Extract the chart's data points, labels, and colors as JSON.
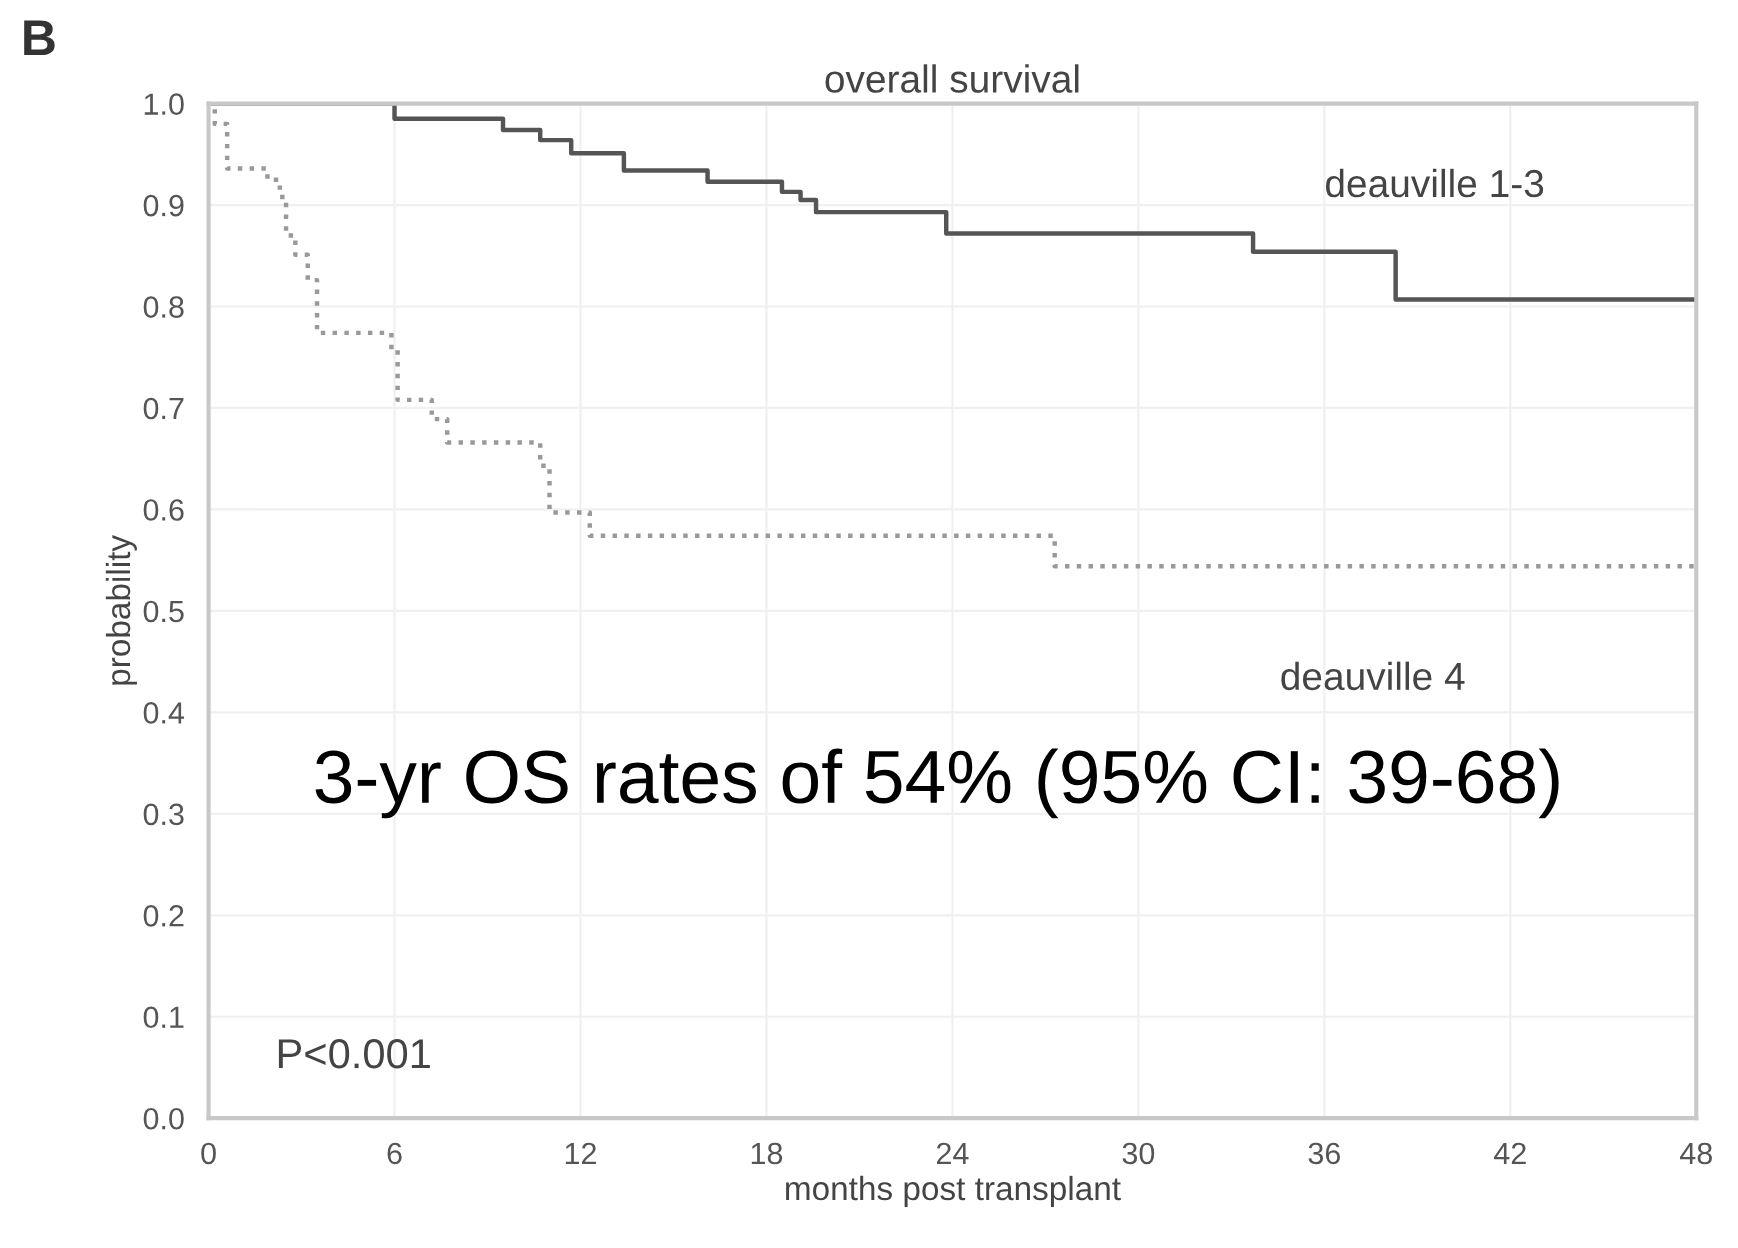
{
  "chart_data": {
    "type": "step",
    "title": "overall survival",
    "xlabel": "months post transplant",
    "ylabel": "probability",
    "xlim": [
      0,
      48
    ],
    "xticks": [
      0,
      6,
      12,
      18,
      24,
      30,
      36,
      42,
      48
    ],
    "ylim": [
      0,
      1.0
    ],
    "yticks": [
      {
        "value": 0,
        "label": "0.0"
      },
      0.1,
      0.2,
      0.3,
      0.4,
      0.5,
      0.6,
      0.7,
      0.8,
      0.9,
      {
        "value": 1,
        "label": "1.0"
      }
    ],
    "grid": true,
    "marker": "none",
    "series": [
      {
        "name": "deauville 1-3",
        "color": "#555555",
        "line_style": "solid",
        "x": [
          0,
          6,
          9.5,
          10.7,
          11.7,
          13.4,
          16.1,
          18.5,
          19.1,
          19.6,
          23.8,
          33.7,
          38.3,
          48
        ],
        "values": [
          1.0,
          0.985,
          0.974,
          0.964,
          0.951,
          0.934,
          0.923,
          0.913,
          0.905,
          0.893,
          0.872,
          0.854,
          0.807,
          0.807
        ]
      },
      {
        "name": "deauville 4",
        "color": "#999999",
        "line_style": "dotted",
        "x": [
          0,
          0.2,
          0.6,
          1.9,
          2.3,
          2.5,
          2.8,
          3.2,
          3.5,
          5.9,
          6.1,
          7.2,
          7.7,
          10.7,
          11.0,
          12.3,
          27.3,
          48
        ],
        "values": [
          1.0,
          0.98,
          0.936,
          0.925,
          0.908,
          0.87,
          0.851,
          0.826,
          0.774,
          0.757,
          0.708,
          0.689,
          0.666,
          0.643,
          0.597,
          0.574,
          0.544,
          0.544
        ]
      }
    ],
    "annotations": [
      "B",
      "3-yr OS rates of 54% (95% CI: 39-68)",
      "P<0.001"
    ]
  }
}
